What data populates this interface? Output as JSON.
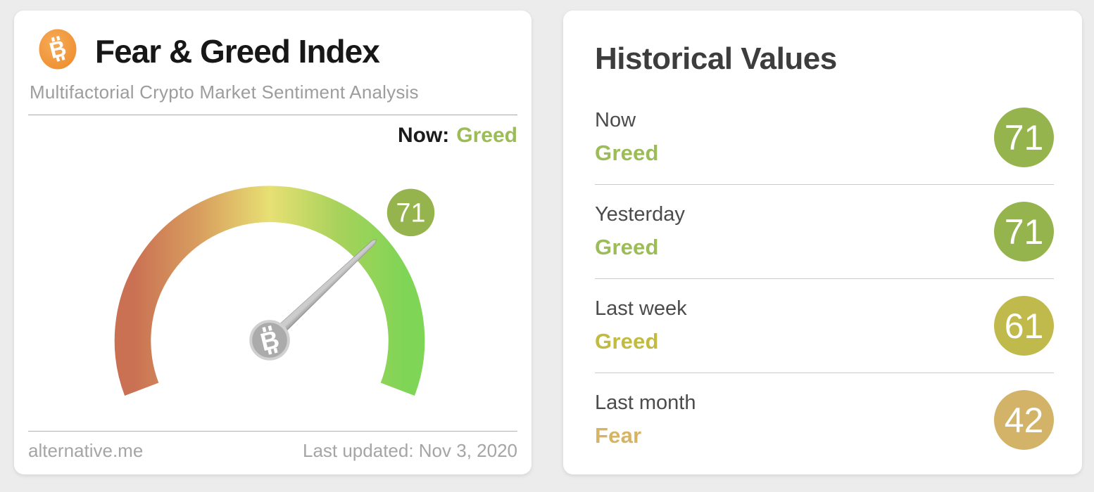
{
  "page": {
    "background": "#ececec"
  },
  "index_card": {
    "title": "Fear & Greed Index",
    "subtitle": "Multifactorial Crypto Market Sentiment Analysis",
    "now_label": "Now:",
    "footer_source": "alternative.me",
    "footer_updated": "Last updated: Nov 3, 2020"
  },
  "chart_data": {
    "type": "gauge",
    "title": "Fear & Greed Index",
    "value": 71,
    "min": 0,
    "max": 100,
    "classification": "Greed",
    "classification_color": "#9bbc57",
    "start_angle_deg": 201,
    "sweep_deg": 222,
    "arc_colors": [
      "#ca7053",
      "#d9a05f",
      "#e7e073",
      "#a8d25b",
      "#7ed556"
    ],
    "badge_color": "#96b44e",
    "needle_color_light": "#cccccc",
    "needle_color_dark": "#909090",
    "hub_color": "#ababab"
  },
  "historical_card": {
    "title": "Historical Values",
    "rows": [
      {
        "label": "Now",
        "classification": "Greed",
        "value": 71,
        "badge_color": "#96b44e",
        "text_color": "#9bbc57"
      },
      {
        "label": "Yesterday",
        "classification": "Greed",
        "value": 71,
        "badge_color": "#96b44e",
        "text_color": "#9bbc57"
      },
      {
        "label": "Last week",
        "classification": "Greed",
        "value": 61,
        "badge_color": "#c0b94b",
        "text_color": "#c2bb41"
      },
      {
        "label": "Last month",
        "classification": "Fear",
        "value": 42,
        "badge_color": "#d2b367",
        "text_color": "#d7b463"
      }
    ]
  },
  "icons": {
    "bitcoin_symbol": "B",
    "bitcoin_orange_light": "#f6ab58",
    "bitcoin_orange_dark": "#ee8e2e"
  }
}
